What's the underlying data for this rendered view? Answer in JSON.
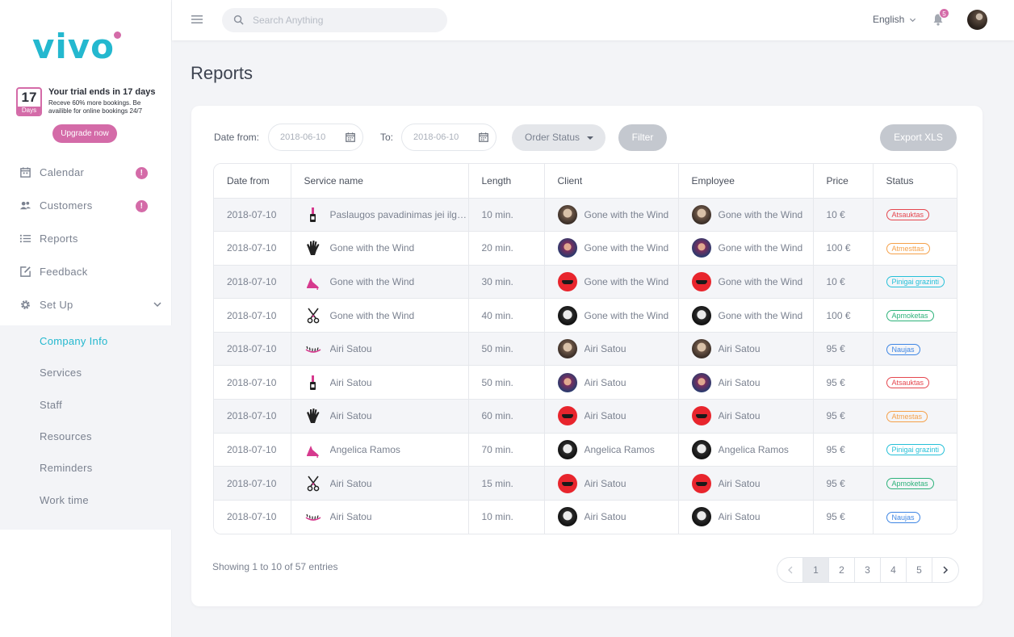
{
  "brand": {
    "logo_text": "vivo"
  },
  "trial": {
    "days_number": "17",
    "days_label": "Days",
    "title": "Your trial ends in 17 days",
    "description": "Receve 60% more bookings. Be availible for online bookings 24/7",
    "upgrade_label": "Upgrade now"
  },
  "sidebar": {
    "items": [
      {
        "label": "Calendar",
        "icon": "calendar-icon",
        "badge": "!"
      },
      {
        "label": "Customers",
        "icon": "customers-icon",
        "badge": "!"
      },
      {
        "label": "Reports",
        "icon": "list-icon"
      },
      {
        "label": "Feedback",
        "icon": "edit-icon"
      },
      {
        "label": "Set Up",
        "icon": "gear-icon",
        "expanded": true
      }
    ],
    "subitems": [
      {
        "label": "Company Info",
        "active": true
      },
      {
        "label": "Services"
      },
      {
        "label": "Staff"
      },
      {
        "label": "Resources"
      },
      {
        "label": "Reminders"
      },
      {
        "label": "Work time"
      }
    ]
  },
  "topbar": {
    "search_placeholder": "Search Anything",
    "language": "English",
    "notification_count": "5"
  },
  "page": {
    "title": "Reports"
  },
  "filters": {
    "date_from_label": "Date from:",
    "date_from_value": "2018-06-10",
    "to_label": "To:",
    "to_value": "2018-06-10",
    "order_status_label": "Order Status",
    "filter_label": "Filter",
    "export_label": "Export XLS"
  },
  "table": {
    "headers": [
      "Date from",
      "Service name",
      "Length",
      "Client",
      "Employee",
      "Price",
      "Status"
    ],
    "rows": [
      {
        "date": "2018-07-10",
        "service_icon": "nail-polish-icon",
        "service": "Paslaugos pavadinimas jei ilgesnis",
        "length": "10 min.",
        "client_avatar": "a",
        "client": "Gone with the Wind",
        "employee_avatar": "a",
        "employee": "Gone with the Wind",
        "price": "10 €",
        "status": "Atsauktas",
        "status_color": "red"
      },
      {
        "date": "2018-07-10",
        "service_icon": "hand-icon",
        "service": "Gone with the Wind",
        "length": "20 min.",
        "client_avatar": "b",
        "client": "Gone with the Wind",
        "employee_avatar": "b",
        "employee": "Gone with the Wind",
        "price": "100 €",
        "status": "Atmesttas",
        "status_color": "orange"
      },
      {
        "date": "2018-07-10",
        "service_icon": "shoe-icon",
        "service": "Gone with the Wind",
        "length": "30 min.",
        "client_avatar": "c",
        "client": "Gone with the Wind",
        "employee_avatar": "c",
        "employee": "Gone with the Wind",
        "price": "10 €",
        "status": "Pinigai grazinti",
        "status_color": "cyan"
      },
      {
        "date": "2018-07-10",
        "service_icon": "scissors-icon",
        "service": "Gone with the Wind",
        "length": "40 min.",
        "client_avatar": "d",
        "client": "Gone with the Wind",
        "employee_avatar": "d",
        "employee": "Gone with the Wind",
        "price": "100 €",
        "status": "Apmoketas",
        "status_color": "green"
      },
      {
        "date": "2018-07-10",
        "service_icon": "eyelash-icon",
        "service": "Airi Satou",
        "length": "50 min.",
        "client_avatar": "a",
        "client": "Airi Satou",
        "employee_avatar": "a",
        "employee": "Airi Satou",
        "price": "95 €",
        "status": "Naujas",
        "status_color": "blue"
      },
      {
        "date": "2018-07-10",
        "service_icon": "nail-polish-icon",
        "service": "Airi Satou",
        "length": "50 min.",
        "client_avatar": "b",
        "client": "Airi Satou",
        "employee_avatar": "b",
        "employee": "Airi Satou",
        "price": "95 €",
        "status": "Atsauktas",
        "status_color": "red"
      },
      {
        "date": "2018-07-10",
        "service_icon": "hand-icon",
        "service": "Airi Satou",
        "length": "60 min.",
        "client_avatar": "c",
        "client": "Airi Satou",
        "employee_avatar": "c",
        "employee": "Airi Satou",
        "price": "95 €",
        "status": "Atmestas",
        "status_color": "orange"
      },
      {
        "date": "2018-07-10",
        "service_icon": "shoe-icon",
        "service": "Angelica Ramos",
        "length": "70 min.",
        "client_avatar": "d",
        "client": "Angelica Ramos",
        "employee_avatar": "d",
        "employee": "Angelica Ramos",
        "price": "95 €",
        "status": "Pinigai grazinti",
        "status_color": "cyan"
      },
      {
        "date": "2018-07-10",
        "service_icon": "scissors-icon",
        "service": "Airi Satou",
        "length": "15 min.",
        "client_avatar": "c",
        "client": "Airi Satou",
        "employee_avatar": "c",
        "employee": "Airi Satou",
        "price": "95 €",
        "status": "Apmoketas",
        "status_color": "green"
      },
      {
        "date": "2018-07-10",
        "service_icon": "eyelash-icon",
        "service": "Airi Satou",
        "length": "10 min.",
        "client_avatar": "d",
        "client": "Airi Satou",
        "employee_avatar": "d",
        "employee": "Airi Satou",
        "price": "95 €",
        "status": "Naujas",
        "status_color": "blue"
      }
    ]
  },
  "footer": {
    "showing": "Showing 1 to 10 of 57 entries",
    "pages": [
      "1",
      "2",
      "3",
      "4",
      "5"
    ],
    "current_page": "1"
  },
  "colors": {
    "accent": "#24b8cf",
    "brand_pink": "#d46ba8"
  }
}
